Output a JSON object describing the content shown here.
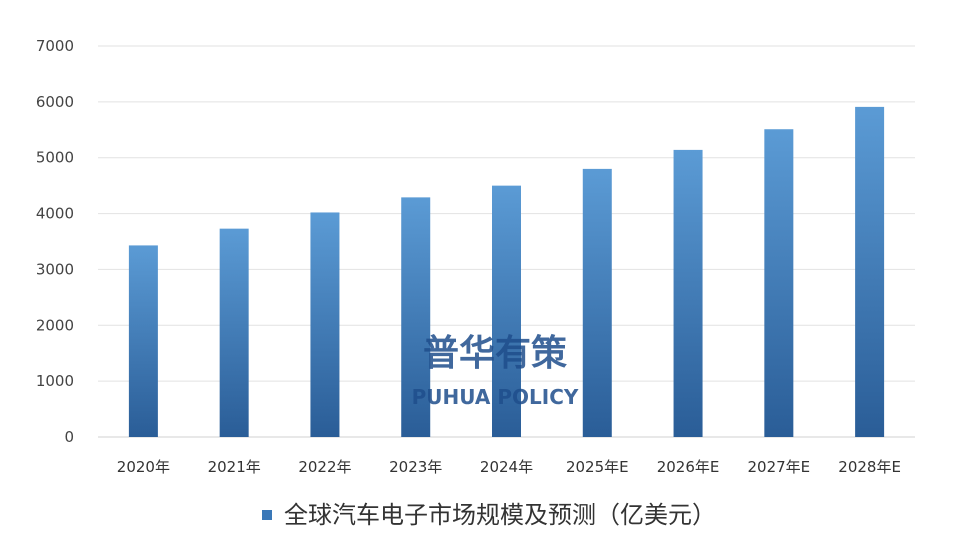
{
  "chart_data": {
    "type": "bar",
    "categories": [
      "2020年",
      "2021年",
      "2022年",
      "2023年",
      "2024年",
      "2025年E",
      "2026年E",
      "2027年E",
      "2028年E"
    ],
    "series": [
      {
        "name": "全球汽车电子市场规模及预测（亿美元）",
        "values": [
          3430,
          3730,
          4020,
          4290,
          4500,
          4800,
          5140,
          5510,
          5910
        ]
      }
    ],
    "ylim": [
      0,
      7000
    ],
    "yticks": [
      0,
      1000,
      2000,
      3000,
      4000,
      5000,
      6000,
      7000
    ],
    "grid": true,
    "legend_position": "bottom",
    "bar_color": "#3a78b8"
  },
  "watermark": {
    "cn": "普华有策",
    "en": "PUHUA POLICY"
  }
}
